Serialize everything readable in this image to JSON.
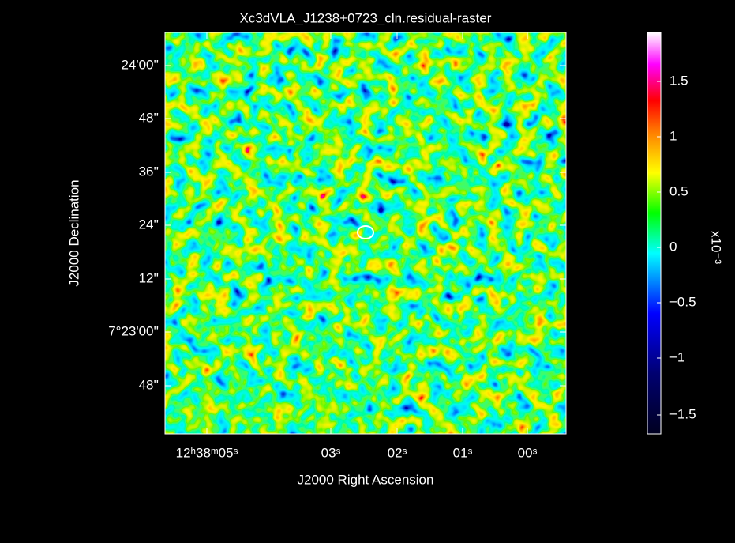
{
  "title": "Xc3dVLA_J1238+0723_cln.residual-raster",
  "x_axis": {
    "label": "J2000 Right Ascension",
    "ticks": [
      "12ʰ38ᵐ05ˢ",
      "03ˢ",
      "02ˢ",
      "01ˢ",
      "00ˢ"
    ]
  },
  "y_axis": {
    "label": "J2000 Declination",
    "ticks": [
      "24'00''",
      "48''",
      "36''",
      "24''",
      "12''",
      "7°23'00''",
      "48''"
    ]
  },
  "colorbar": {
    "label": "x10⁻³",
    "ticks": [
      "1.5",
      "1",
      "0.5",
      "0",
      "−0.5",
      "−1",
      "−1.5"
    ]
  }
}
